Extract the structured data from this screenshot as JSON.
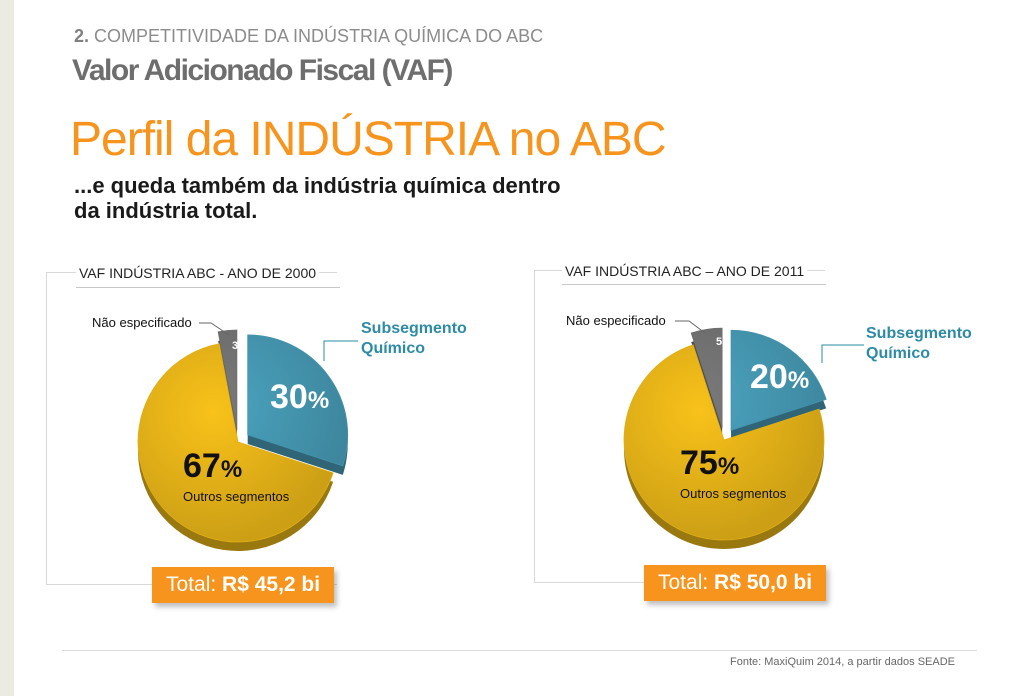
{
  "header": {
    "section_number": "2.",
    "section_title": "COMPETITIVIDADE DA INDÚSTRIA QUÍMICA DO ABC",
    "vaf_title": "Valor Adicionado Fiscal (VAF)",
    "main_title": "Perfil da INDÚSTRIA no ABC",
    "subtitle_line1": "...e queda também da indústria química dentro",
    "subtitle_line2": "da indústria total."
  },
  "chart_data": [
    {
      "type": "pie",
      "title": "VAF INDÚSTRIA  ABC -  ANO DE 2000",
      "slices": [
        {
          "label": "Subsegmento Químico",
          "label_line1": "Subsegmento",
          "label_line2": "Químico",
          "value": 30,
          "color": "#4ba3bf",
          "exploded": true
        },
        {
          "label": "Outros segmentos",
          "value": 67,
          "color": "#f9c21a",
          "exploded": false
        },
        {
          "label": "Não especificado",
          "value": 3,
          "color": "#7a7a7a",
          "exploded": true
        }
      ],
      "pct_labels": {
        "quimico_num": "30",
        "outros_num": "67",
        "nao_num": "3",
        "sym": "%"
      },
      "total_prefix": "Total:",
      "total_value": "R$ 45,2 bi"
    },
    {
      "type": "pie",
      "title": "VAF INDÚSTRIA  ABC – ANO DE 2011",
      "slices": [
        {
          "label": "Subsegmento Químico",
          "label_line1": "Subsegmento",
          "label_line2": "Químico",
          "value": 20,
          "color": "#4ba3bf",
          "exploded": true
        },
        {
          "label": "Outros segmentos",
          "value": 75,
          "color": "#f9c21a",
          "exploded": false
        },
        {
          "label": "Não especificado",
          "value": 5,
          "color": "#7a7a7a",
          "exploded": true
        }
      ],
      "pct_labels": {
        "quimico_num": "20",
        "outros_num": "75",
        "nao_num": "5",
        "sym": "%"
      },
      "total_prefix": "Total:",
      "total_value": "R$ 50,0 bi"
    }
  ],
  "footer": {
    "source": "Fonte: MaxiQuim 2014,  a partir dados SEADE"
  }
}
